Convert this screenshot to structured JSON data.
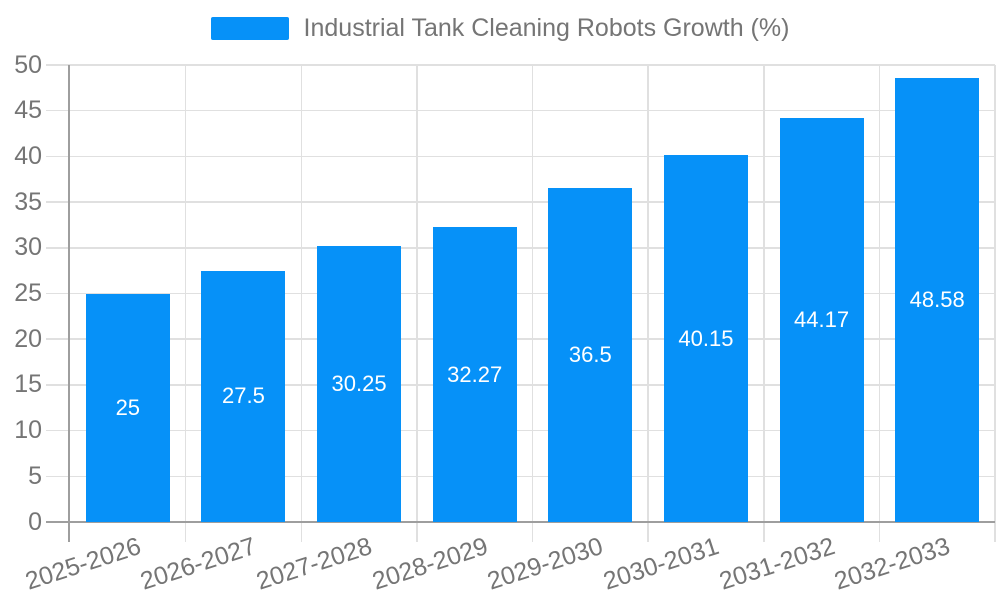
{
  "chart_data": {
    "type": "bar",
    "title": "Industrial Tank Cleaning Robots Growth (%)",
    "legend": "Industrial Tank Cleaning Robots Growth (%)",
    "legend_position": "top-center",
    "categories": [
      "2025-2026",
      "2026-2027",
      "2027-2028",
      "2028-2029",
      "2029-2030",
      "2030-2031",
      "2031-2032",
      "2032-2033"
    ],
    "values": [
      25,
      27.5,
      30.25,
      32.27,
      36.5,
      40.15,
      44.17,
      48.58
    ],
    "value_labels": [
      "25",
      "27.5",
      "30.25",
      "32.27",
      "36.5",
      "40.15",
      "44.17",
      "48.58"
    ],
    "xlabel": "",
    "ylabel": "",
    "ylim": [
      0,
      50
    ],
    "yticks": [
      0,
      5,
      10,
      15,
      20,
      25,
      30,
      35,
      40,
      45,
      50
    ],
    "grid": true,
    "xtick_rotation": -18,
    "colors": {
      "bar": "#0691f8",
      "value_label": "#ffffff",
      "axis": "#9e9e9e",
      "grid": "#e0e0e0",
      "tick_text": "#757575",
      "background": "#ffffff"
    }
  }
}
